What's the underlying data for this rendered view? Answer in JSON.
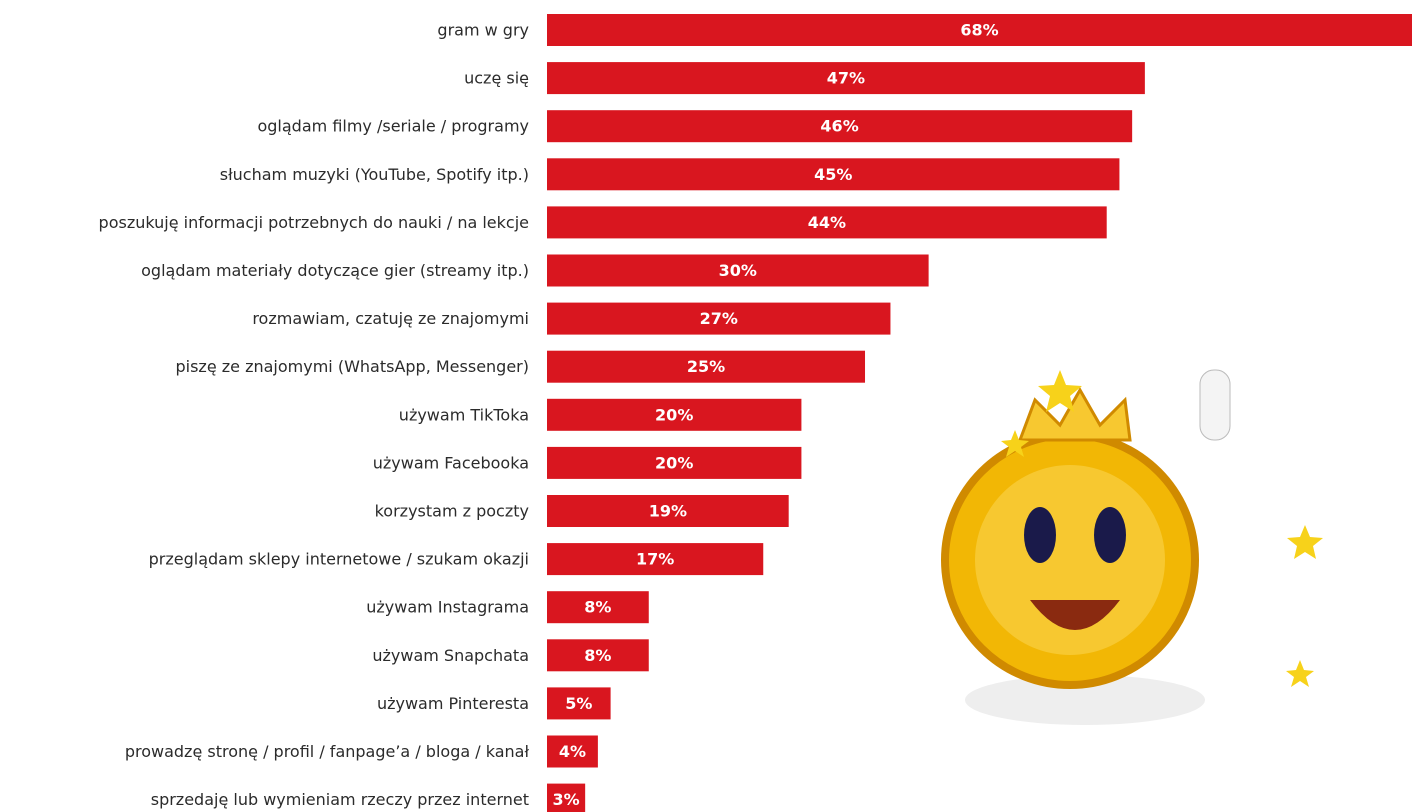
{
  "chart_data": {
    "type": "bar",
    "orientation": "horizontal",
    "color": "#d9161f",
    "categories": [
      "gram w gry",
      "uczę się",
      "oglądam filmy /seriale / programy",
      "słucham muzyki (YouTube, Spotify itp.)",
      "poszukuję informacji potrzebnych do nauki / na lekcje",
      "oglądam materiały dotyczące gier (streamy itp.)",
      "rozmawiam, czatuję ze znajomymi",
      "piszę ze znajomymi (WhatsApp, Messenger)",
      "używam TikToka",
      "używam Facebooka",
      "korzystam z poczty",
      "przeglądam sklepy internetowe / szukam okazji",
      "używam Instagrama",
      "używam Snapchata",
      "używam Pinteresta",
      "prowadzę stronę / profil / fanpage’a / bloga / kanał",
      "sprzedaję lub wymieniam rzeczy przez internet"
    ],
    "values": [
      68,
      47,
      46,
      45,
      44,
      30,
      27,
      25,
      20,
      20,
      19,
      17,
      8,
      8,
      5,
      4,
      3
    ],
    "value_labels": [
      "68%",
      "47%",
      "46%",
      "45%",
      "44%",
      "30%",
      "27%",
      "25%",
      "20%",
      "20%",
      "19%",
      "17%",
      "8%",
      "8%",
      "5%",
      "4%",
      "3%"
    ]
  }
}
